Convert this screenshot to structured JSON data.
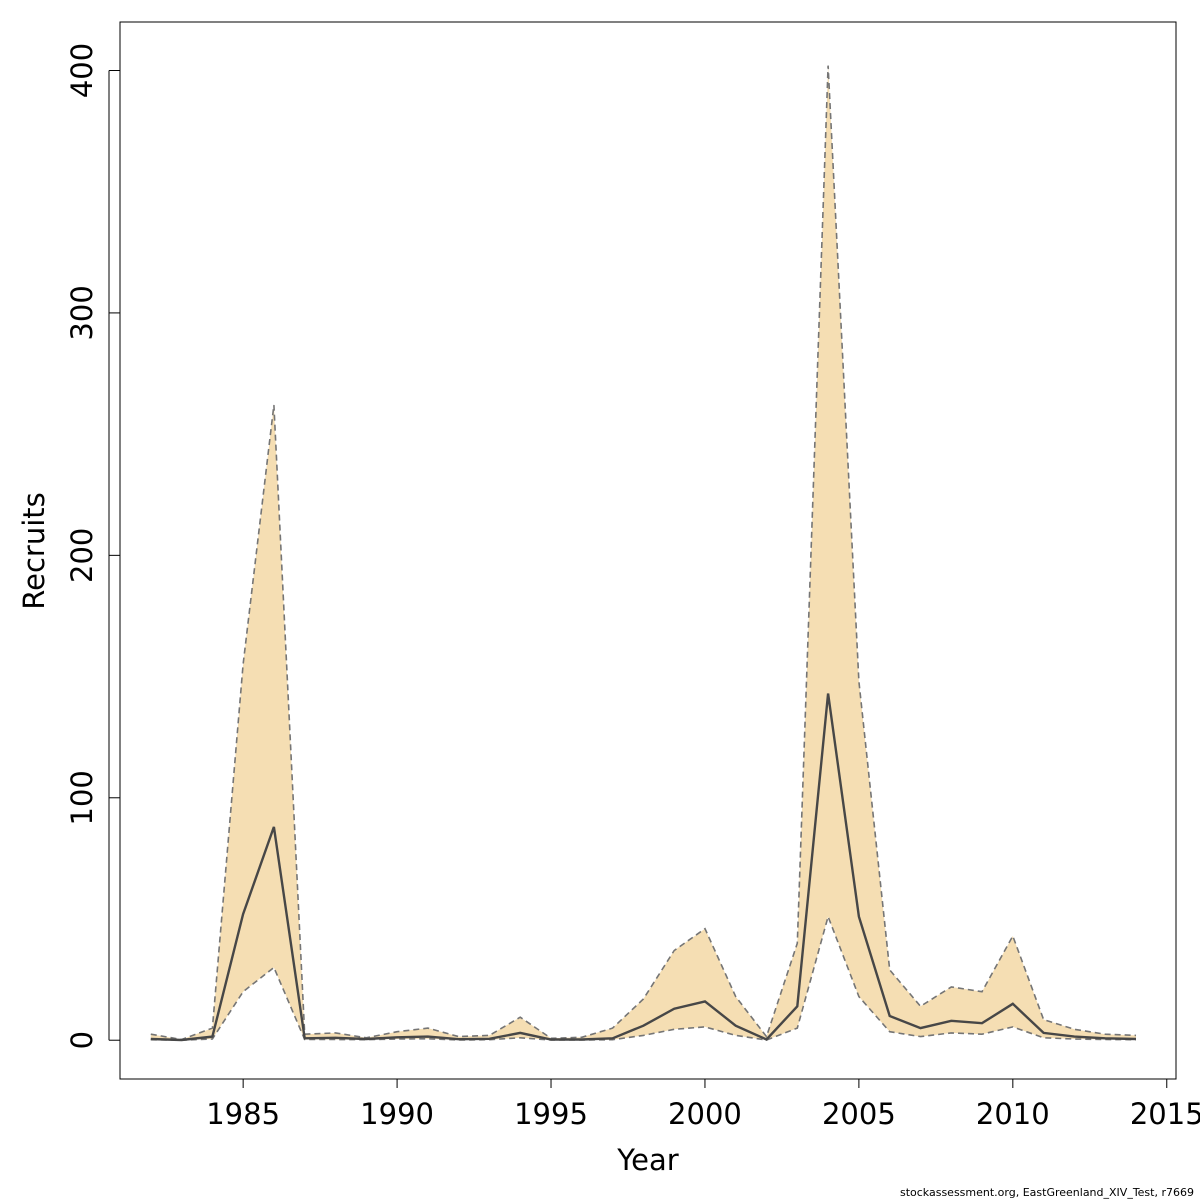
{
  "chart_data": {
    "type": "area",
    "xlabel": "Year",
    "ylabel": "Recruits",
    "xlim": [
      1981,
      2015.3
    ],
    "ylim": [
      -16,
      420
    ],
    "x_ticks": [
      1985,
      1990,
      1995,
      2000,
      2005,
      2010,
      2015
    ],
    "y_ticks": [
      0,
      100,
      200,
      300,
      400
    ],
    "grid": false,
    "x": [
      1982,
      1983,
      1984,
      1985,
      1986,
      1987,
      1988,
      1989,
      1990,
      1991,
      1992,
      1993,
      1994,
      1995,
      1996,
      1997,
      1998,
      1999,
      2000,
      2001,
      2002,
      2003,
      2004,
      2005,
      2006,
      2007,
      2008,
      2009,
      2010,
      2011,
      2012,
      2013,
      2014
    ],
    "estimate": [
      0.5,
      0.1,
      1.5,
      52,
      88,
      0.8,
      1.0,
      0.5,
      1.2,
      1.5,
      0.4,
      0.6,
      3.0,
      0.3,
      0.3,
      0.8,
      6.0,
      13,
      16,
      6,
      0.3,
      14,
      143,
      51,
      10,
      5,
      8,
      7,
      15,
      3,
      1.5,
      0.8,
      0.5
    ],
    "lower": [
      0.2,
      0.05,
      0.5,
      20,
      30,
      0.3,
      0.3,
      0.2,
      0.5,
      0.6,
      0.1,
      0.2,
      1.0,
      0.1,
      0.1,
      0.2,
      2.0,
      4.5,
      5.5,
      2.0,
      0.1,
      5,
      51,
      18,
      3.5,
      1.5,
      3.0,
      2.5,
      5.5,
      1.0,
      0.5,
      0.3,
      0.2
    ],
    "upper": [
      2.5,
      0.3,
      5.0,
      155,
      262,
      2.5,
      3.0,
      1.0,
      3.5,
      5.0,
      1.5,
      2.0,
      9.5,
      0.8,
      1.2,
      5.0,
      17,
      37,
      46,
      18,
      1.5,
      40,
      402,
      148,
      29,
      14,
      22,
      20,
      43,
      8.5,
      4.5,
      2.5,
      2.0
    ],
    "colors": {
      "band_fill": "#f5deb3",
      "band_border": "#757575",
      "estimate_line": "#474747"
    }
  },
  "footer": "stockassessment.org, EastGreenland_XIV_Test, r7669"
}
